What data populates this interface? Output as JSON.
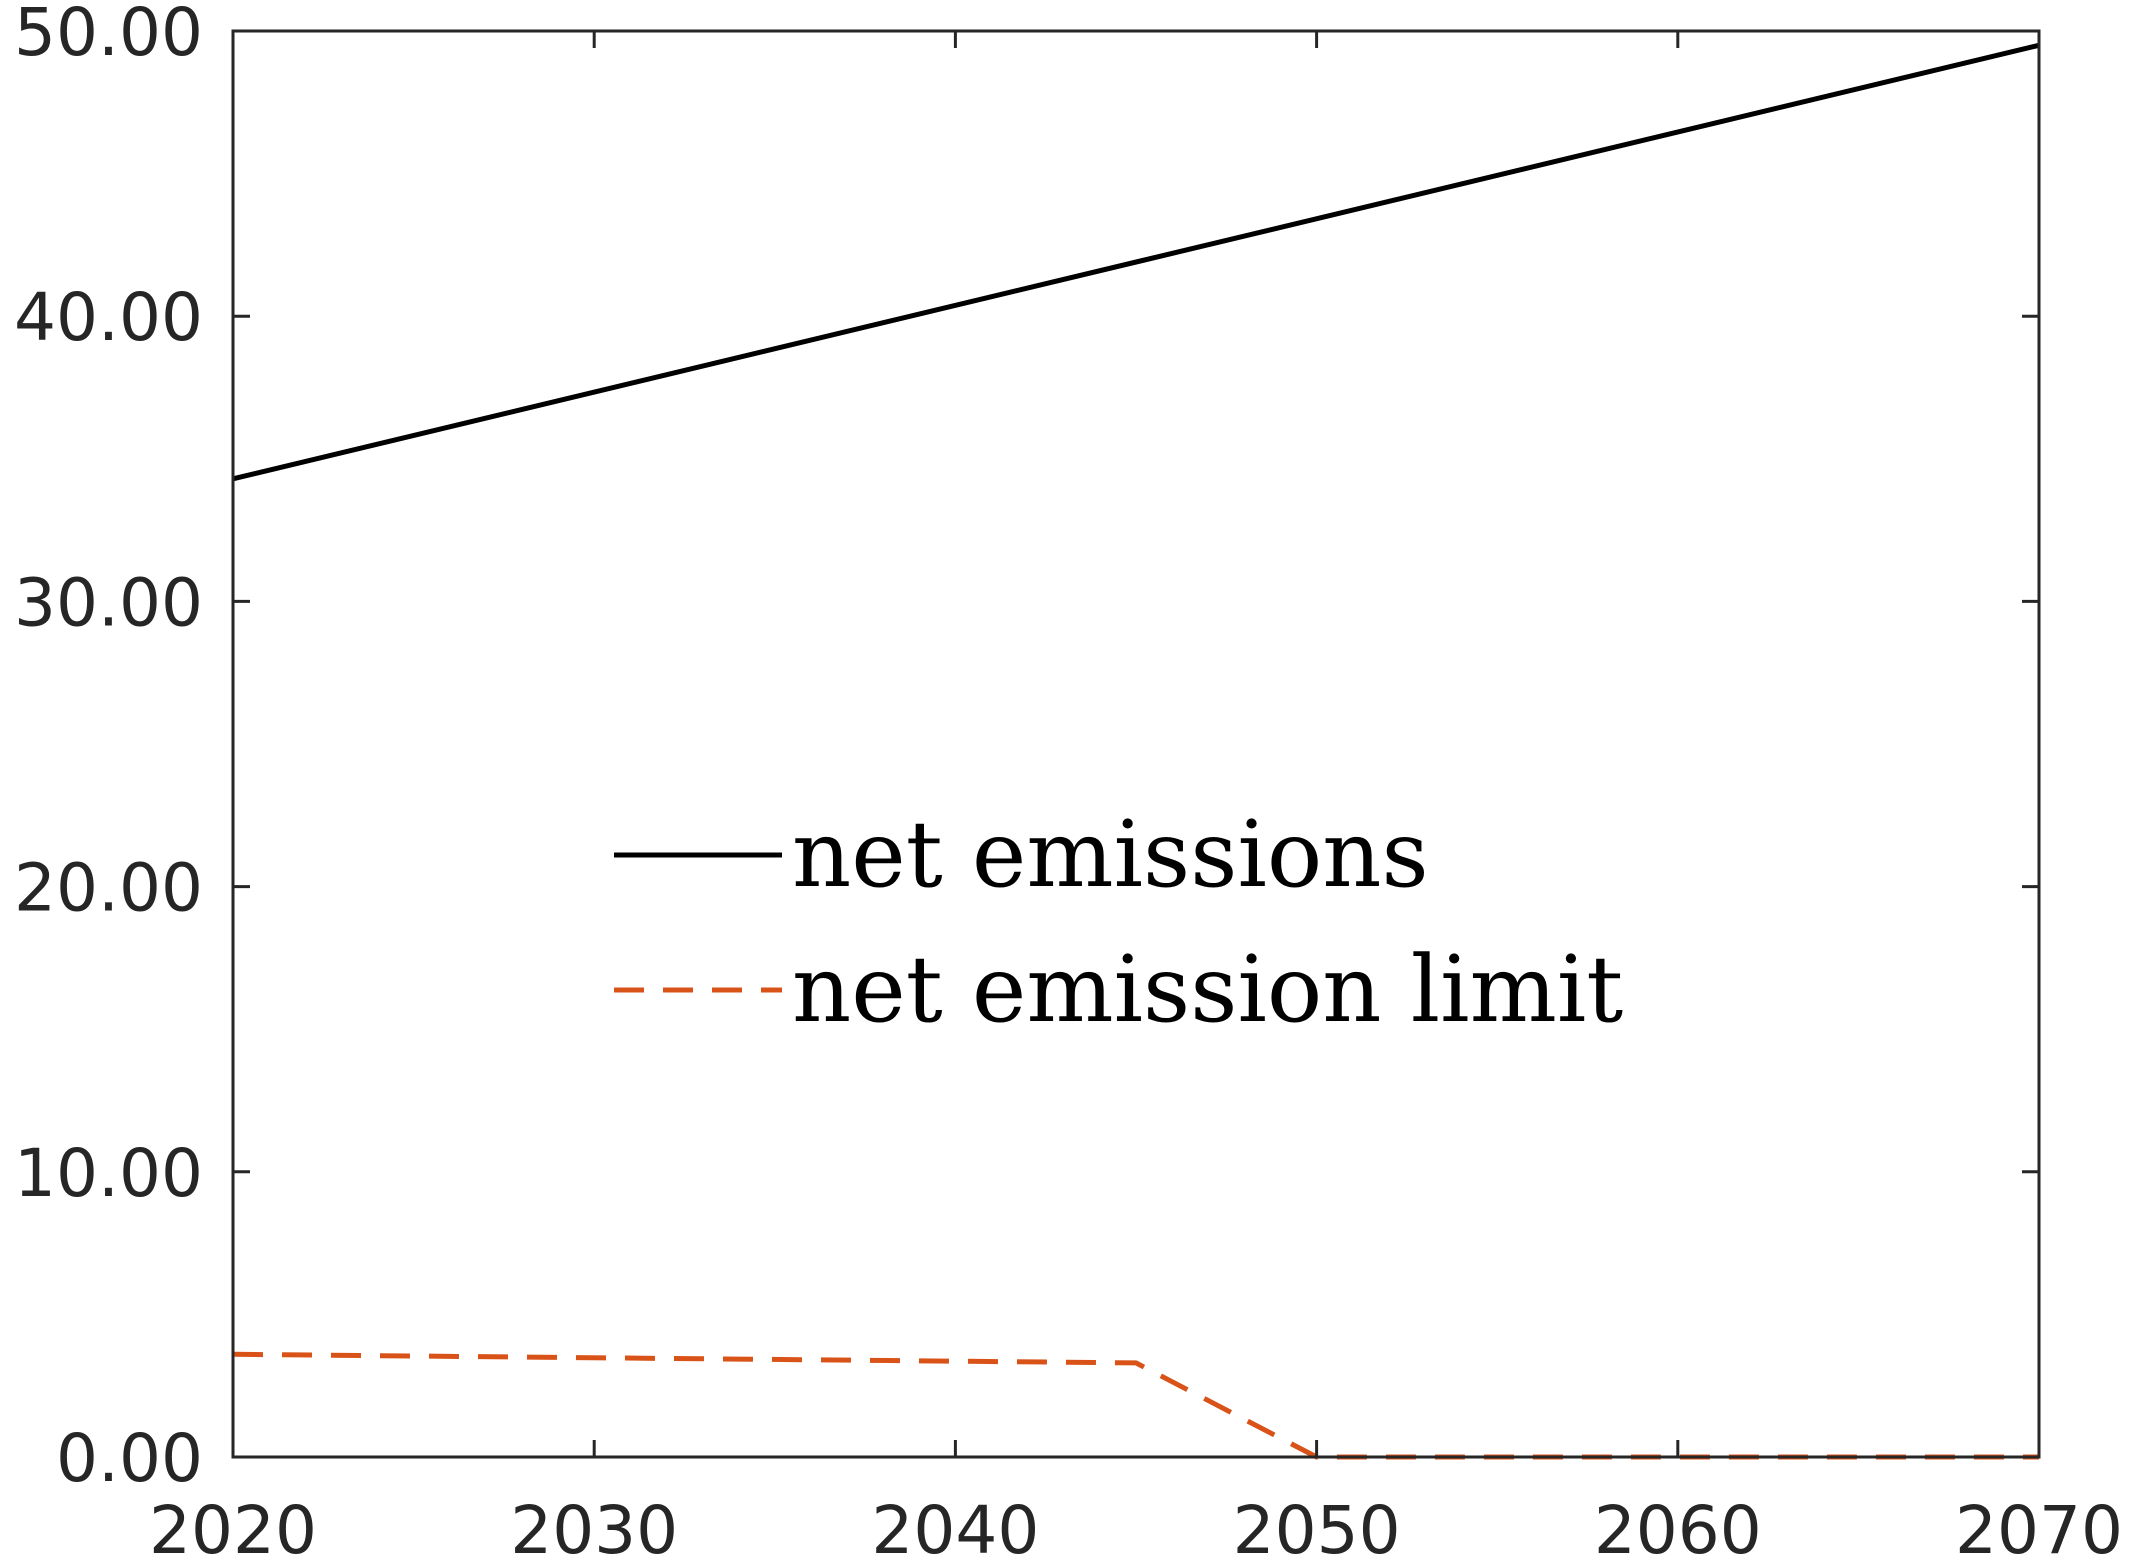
{
  "chart_data": {
    "type": "line",
    "title": "",
    "xlabel": "",
    "ylabel": "",
    "xlim": [
      2020,
      2070
    ],
    "ylim": [
      0,
      50
    ],
    "x_ticks": [
      2020,
      2030,
      2040,
      2050,
      2060,
      2070
    ],
    "x_tick_labels": [
      "2020",
      "2030",
      "2040",
      "2050",
      "2060",
      "2070"
    ],
    "y_ticks": [
      0,
      10,
      20,
      30,
      40,
      50
    ],
    "y_tick_labels": [
      "0.00",
      "10.00",
      "20.00",
      "30.00",
      "40.00",
      "50.00"
    ],
    "grid": false,
    "legend_position": "center",
    "series": [
      {
        "name": "net emissions",
        "color": "#000000",
        "dash": "solid",
        "x": [
          2020,
          2070
        ],
        "y": [
          34.3,
          49.5
        ]
      },
      {
        "name": "net emission limit",
        "color": "#D95319",
        "dash": "dashed",
        "x": [
          2020,
          2045,
          2050,
          2070
        ],
        "y": [
          3.6,
          3.3,
          0,
          0
        ]
      }
    ]
  }
}
